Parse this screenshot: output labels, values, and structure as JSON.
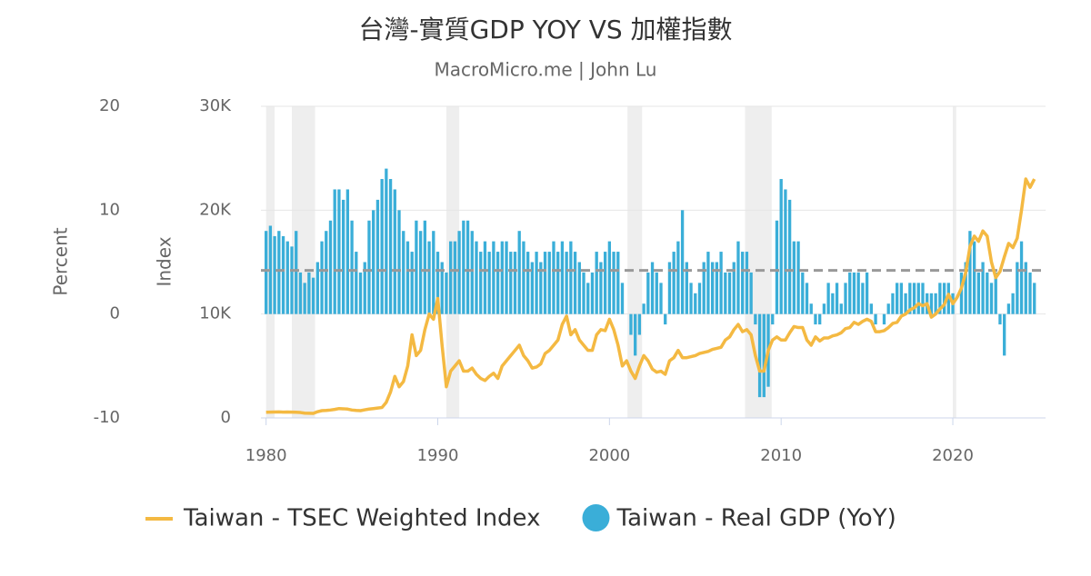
{
  "chart_data": {
    "type": "combo",
    "title": "台灣-實質GDP YOY VS 加權指數",
    "subtitle": "MacroMicro.me | John Lu",
    "y_label": "Percent",
    "y2_label": "Index",
    "xlim": [
      1979.7,
      2025.4
    ],
    "xticks": [
      1980,
      1990,
      2000,
      2010,
      2020
    ],
    "ylim": [
      -10,
      20
    ],
    "yticks": [
      -10,
      0,
      10,
      20
    ],
    "y2lim": [
      0,
      30000
    ],
    "y2ticks": [
      {
        "value": 0,
        "label": "0"
      },
      {
        "value": 10000,
        "label": "10K"
      },
      {
        "value": 20000,
        "label": "20K"
      },
      {
        "value": 30000,
        "label": "30K"
      }
    ],
    "grid": true,
    "legend": "bottom",
    "reference_line": {
      "value": 4.2,
      "color": "#999999"
    },
    "shaded_ranges": [
      [
        1980.0,
        1980.5
      ],
      [
        1981.5,
        1982.85
      ],
      [
        1990.5,
        1991.25
      ],
      [
        2001.05,
        2001.9
      ],
      [
        2007.9,
        2009.45
      ],
      [
        2020.0,
        2020.2
      ]
    ],
    "x": [
      1980,
      1980.25,
      1980.5,
      1980.75,
      1981,
      1981.25,
      1981.5,
      1981.75,
      1982,
      1982.25,
      1982.5,
      1982.75,
      1983,
      1983.25,
      1983.5,
      1983.75,
      1984,
      1984.25,
      1984.5,
      1984.75,
      1985,
      1985.25,
      1985.5,
      1985.75,
      1986,
      1986.25,
      1986.5,
      1986.75,
      1987,
      1987.25,
      1987.5,
      1987.75,
      1988,
      1988.25,
      1988.5,
      1988.75,
      1989,
      1989.25,
      1989.5,
      1989.75,
      1990,
      1990.25,
      1990.5,
      1990.75,
      1991,
      1991.25,
      1991.5,
      1991.75,
      1992,
      1992.25,
      1992.5,
      1992.75,
      1993,
      1993.25,
      1993.5,
      1993.75,
      1994,
      1994.25,
      1994.5,
      1994.75,
      1995,
      1995.25,
      1995.5,
      1995.75,
      1996,
      1996.25,
      1996.5,
      1996.75,
      1997,
      1997.25,
      1997.5,
      1997.75,
      1998,
      1998.25,
      1998.5,
      1998.75,
      1999,
      1999.25,
      1999.5,
      1999.75,
      2000,
      2000.25,
      2000.5,
      2000.75,
      2001,
      2001.25,
      2001.5,
      2001.75,
      2002,
      2002.25,
      2002.5,
      2002.75,
      2003,
      2003.25,
      2003.5,
      2003.75,
      2004,
      2004.25,
      2004.5,
      2004.75,
      2005,
      2005.25,
      2005.5,
      2005.75,
      2006,
      2006.25,
      2006.5,
      2006.75,
      2007,
      2007.25,
      2007.5,
      2007.75,
      2008,
      2008.25,
      2008.5,
      2008.75,
      2009,
      2009.25,
      2009.5,
      2009.75,
      2010,
      2010.25,
      2010.5,
      2010.75,
      2011,
      2011.25,
      2011.5,
      2011.75,
      2012,
      2012.25,
      2012.5,
      2012.75,
      2013,
      2013.25,
      2013.5,
      2013.75,
      2014,
      2014.25,
      2014.5,
      2014.75,
      2015,
      2015.25,
      2015.5,
      2015.75,
      2016,
      2016.25,
      2016.5,
      2016.75,
      2017,
      2017.25,
      2017.5,
      2017.75,
      2018,
      2018.25,
      2018.5,
      2018.75,
      2019,
      2019.25,
      2019.5,
      2019.75,
      2020,
      2020.25,
      2020.5,
      2020.75,
      2021,
      2021.25,
      2021.5,
      2021.75,
      2022,
      2022.25,
      2022.5,
      2022.75,
      2023,
      2023.25,
      2023.5,
      2023.75,
      2024,
      2024.25,
      2024.5,
      2024.75
    ],
    "series": [
      {
        "name": "Taiwan - TSEC Weighted Index",
        "type": "line",
        "axis": "y2",
        "color": "#f4b942",
        "values": [
          550,
          560,
          570,
          580,
          560,
          570,
          560,
          550,
          520,
          460,
          450,
          440,
          600,
          700,
          720,
          760,
          820,
          900,
          880,
          850,
          760,
          720,
          700,
          780,
          850,
          900,
          950,
          1000,
          1500,
          2500,
          4000,
          3000,
          3500,
          5000,
          8000,
          6000,
          6500,
          8500,
          10000,
          9500,
          11500,
          7000,
          3000,
          4500,
          5000,
          5500,
          4500,
          4500,
          4800,
          4200,
          3800,
          3600,
          4000,
          4300,
          3800,
          5000,
          5500,
          6000,
          6500,
          7000,
          6000,
          5500,
          4800,
          4900,
          5200,
          6200,
          6500,
          7000,
          7500,
          9000,
          9800,
          8000,
          8500,
          7500,
          7000,
          6500,
          6500,
          8000,
          8500,
          8400,
          9500,
          8500,
          7000,
          5000,
          5500,
          4500,
          3800,
          5000,
          6000,
          5500,
          4700,
          4400,
          4500,
          4200,
          5500,
          5800,
          6500,
          5800,
          5800,
          5900,
          6000,
          6200,
          6300,
          6400,
          6600,
          6700,
          6800,
          7500,
          7800,
          8500,
          9000,
          8300,
          8500,
          8000,
          6000,
          4500,
          4500,
          6500,
          7500,
          7800,
          7500,
          7500,
          8200,
          8800,
          8700,
          8700,
          7500,
          7000,
          7800,
          7400,
          7700,
          7700,
          7900,
          8000,
          8200,
          8600,
          8700,
          9200,
          9000,
          9300,
          9500,
          9300,
          8300,
          8300,
          8400,
          8700,
          9100,
          9200,
          9800,
          10000,
          10400,
          10600,
          11000,
          10800,
          11000,
          9700,
          10000,
          10500,
          10900,
          11900,
          11000,
          11600,
          12500,
          14000,
          16500,
          17500,
          17000,
          18000,
          17500,
          15000,
          13500,
          14100,
          15500,
          16800,
          16400,
          17300,
          20000,
          23000,
          22200,
          23000
        ]
      },
      {
        "name": "Taiwan - Real GDP (YoY)",
        "type": "bar",
        "color": "#3aaed8",
        "values": [
          8,
          8.5,
          7.5,
          8,
          7.5,
          7,
          6.5,
          8,
          4,
          3,
          4,
          3.5,
          5,
          7,
          8,
          9,
          12,
          12,
          11,
          12,
          9,
          6,
          4,
          5,
          9,
          10,
          11,
          13,
          14,
          13,
          12,
          10,
          8,
          7,
          6,
          9,
          8,
          9,
          7,
          8,
          6,
          5,
          4,
          7,
          7,
          8,
          9,
          9,
          8,
          7,
          6,
          7,
          6,
          7,
          6,
          7,
          7,
          6,
          6,
          8,
          7,
          6,
          5,
          6,
          5,
          6,
          6,
          7,
          6,
          7,
          6,
          7,
          6,
          5,
          4,
          3,
          4,
          6,
          5,
          6,
          7,
          6,
          6,
          3,
          0,
          -2,
          -4,
          -2,
          1,
          4,
          5,
          4,
          3,
          -1,
          5,
          6,
          7,
          10,
          5,
          3,
          2,
          3,
          5,
          6,
          5,
          5,
          6,
          4,
          4,
          5,
          7,
          6,
          6,
          4,
          -1,
          -8,
          -8,
          -7,
          -1,
          9,
          13,
          12,
          11,
          7,
          7,
          4,
          3,
          1,
          -1,
          -1,
          1,
          3,
          2,
          3,
          1,
          3,
          4,
          4,
          4,
          3,
          4,
          1,
          -1,
          0,
          -1,
          1,
          2,
          3,
          3,
          2,
          3,
          3,
          3,
          3,
          2,
          2,
          2,
          3,
          3,
          3,
          2,
          0,
          4,
          5,
          8,
          7,
          4,
          5,
          4,
          3,
          4,
          -1,
          -4,
          1,
          2,
          5,
          7,
          5,
          4,
          3
        ]
      }
    ]
  }
}
